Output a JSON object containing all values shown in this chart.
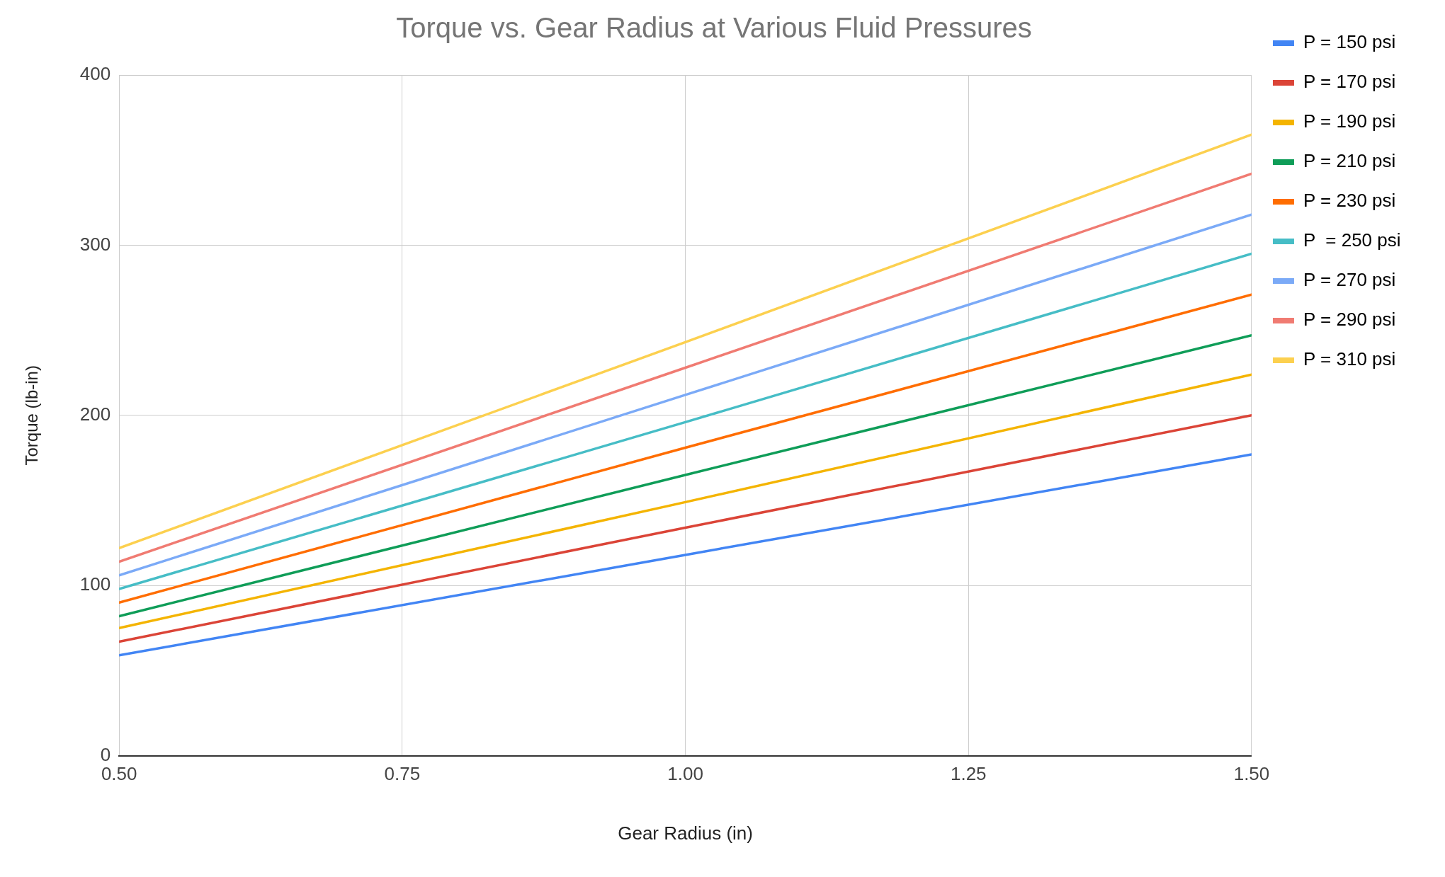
{
  "chart_data": {
    "type": "line",
    "title": "Torque vs. Gear Radius at Various Fluid Pressures",
    "xlabel": "Gear Radius (in)",
    "ylabel": "Torque (lb-in)",
    "x": [
      0.5,
      1.0,
      1.5
    ],
    "xlim": [
      0.5,
      1.5
    ],
    "xticks": [
      {
        "value": 0.5,
        "label": "0.50"
      },
      {
        "value": 0.75,
        "label": "0.75"
      },
      {
        "value": 1.0,
        "label": "1.00"
      },
      {
        "value": 1.25,
        "label": "1.25"
      },
      {
        "value": 1.5,
        "label": "1.50"
      }
    ],
    "ylim": [
      0,
      400
    ],
    "yticks": [
      0,
      100,
      200,
      300,
      400
    ],
    "grid": true,
    "legend": "right",
    "marker": "none",
    "line_style": "solid",
    "series": [
      {
        "name": "P = 150 psi",
        "color": "#4285f4",
        "values": [
          59,
          118,
          177
        ]
      },
      {
        "name": "P = 170 psi",
        "color": "#db4437",
        "values": [
          67,
          134,
          200
        ]
      },
      {
        "name": "P = 190 psi",
        "color": "#f4b400",
        "values": [
          75,
          149,
          224
        ]
      },
      {
        "name": "P = 210 psi",
        "color": "#0f9d58",
        "values": [
          82,
          165,
          247
        ]
      },
      {
        "name": "P = 230 psi",
        "color": "#ff6d01",
        "values": [
          90,
          181,
          271
        ]
      },
      {
        "name": "P  = 250 psi",
        "color": "#46bdc6",
        "values": [
          98,
          196,
          295
        ]
      },
      {
        "name": "P = 270 psi",
        "color": "#7baaf7",
        "values": [
          106,
          212,
          318
        ]
      },
      {
        "name": "P = 290 psi",
        "color": "#f07b72",
        "values": [
          114,
          228,
          342
        ]
      },
      {
        "name": "P = 310 psi",
        "color": "#fcd04f",
        "values": [
          122,
          243,
          365
        ]
      }
    ]
  }
}
